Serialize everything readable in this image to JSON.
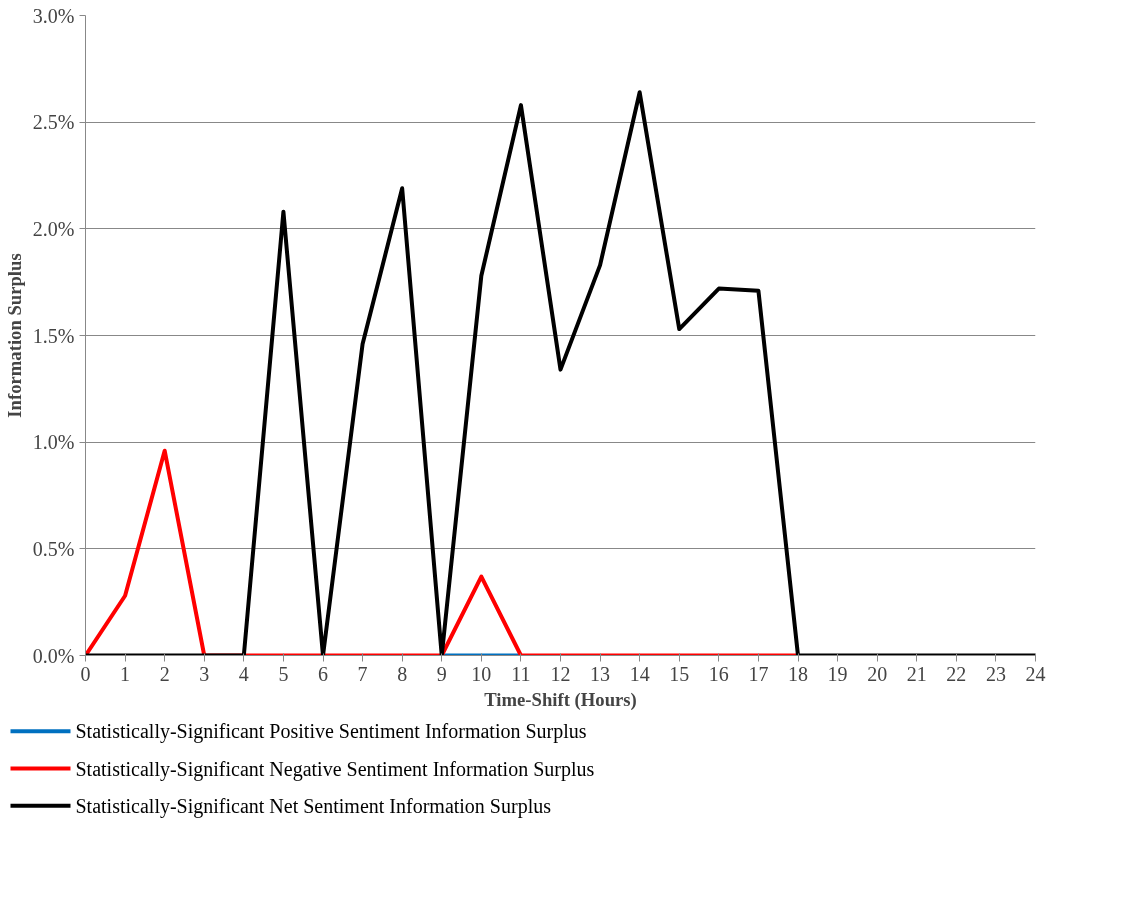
{
  "chart_data": {
    "type": "line",
    "xlabel": "Time-Shift (Hours)",
    "ylabel": "Information Surplus",
    "x": [
      0,
      1,
      2,
      3,
      4,
      5,
      6,
      7,
      8,
      9,
      10,
      11,
      12,
      13,
      14,
      15,
      16,
      17,
      18,
      19,
      20,
      21,
      22,
      23,
      24
    ],
    "series": [
      {
        "name": "Statistically-Significant Positive Sentiment Information Surplus",
        "color": "#0070c0",
        "values": [
          null,
          null,
          null,
          null,
          null,
          null,
          null,
          null,
          null,
          0,
          0,
          0,
          null,
          null,
          null,
          null,
          null,
          null,
          null,
          null,
          null,
          null,
          null,
          null,
          null
        ]
      },
      {
        "name": "Statistically-Significant Negative Sentiment Information Surplus",
        "color": "#ff0000",
        "values": [
          0,
          0.28,
          0.96,
          0,
          0,
          0,
          0,
          0,
          0,
          0,
          0.37,
          0,
          0,
          0,
          0,
          0,
          0,
          0,
          0,
          null,
          null,
          null,
          null,
          null,
          null
        ]
      },
      {
        "name": "Statistically-Significant Net Sentiment Information Surplus",
        "color": "#000000",
        "values": [
          0,
          0,
          0,
          0,
          0,
          2.08,
          0,
          1.46,
          2.19,
          0,
          1.78,
          2.58,
          1.34,
          1.83,
          2.64,
          1.53,
          1.72,
          1.71,
          0,
          0,
          0,
          0,
          0,
          0,
          0
        ]
      }
    ],
    "xlim": [
      0,
      24
    ],
    "xticks": [
      0,
      1,
      2,
      3,
      4,
      5,
      6,
      7,
      8,
      9,
      10,
      11,
      12,
      13,
      14,
      15,
      16,
      17,
      18,
      19,
      20,
      21,
      22,
      23,
      24
    ],
    "ylim": [
      0,
      3
    ],
    "yticks": [
      {
        "value": 0,
        "label": "0.0%"
      },
      {
        "value": 0.5,
        "label": "0.5%"
      },
      {
        "value": 1,
        "label": "1.0%"
      },
      {
        "value": 1.5,
        "label": "1.5%"
      },
      {
        "value": 2,
        "label": "2.0%"
      },
      {
        "value": 2.5,
        "label": "2.5%"
      },
      {
        "value": 3,
        "label": "3.0%"
      }
    ],
    "grid": "y",
    "legend": "bottom",
    "marker": "none",
    "line_style": "solid"
  }
}
